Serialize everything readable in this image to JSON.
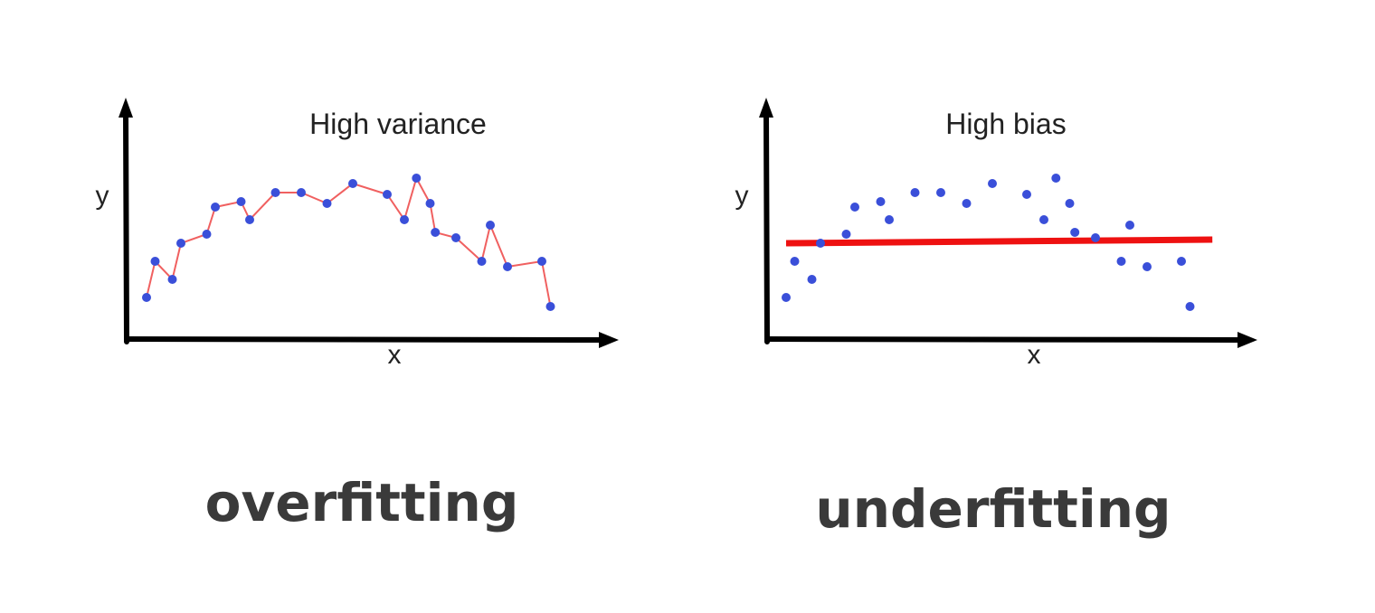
{
  "chart_data": [
    {
      "type": "line",
      "title": "High variance",
      "xlabel": "x",
      "ylabel": "y",
      "caption": "overfitting",
      "colors": {
        "line": "#f06060",
        "points": "#3a4fd9"
      },
      "points": [
        {
          "x": 1.0,
          "y": 2.3
        },
        {
          "x": 1.5,
          "y": 4.3
        },
        {
          "x": 2.5,
          "y": 3.3
        },
        {
          "x": 3.0,
          "y": 5.3
        },
        {
          "x": 4.5,
          "y": 5.8
        },
        {
          "x": 5.0,
          "y": 7.3
        },
        {
          "x": 6.5,
          "y": 7.6
        },
        {
          "x": 7.0,
          "y": 6.6
        },
        {
          "x": 8.5,
          "y": 8.1
        },
        {
          "x": 10.0,
          "y": 8.1
        },
        {
          "x": 11.5,
          "y": 7.5
        },
        {
          "x": 13.0,
          "y": 8.6
        },
        {
          "x": 15.0,
          "y": 8.0
        },
        {
          "x": 16.0,
          "y": 6.6
        },
        {
          "x": 16.7,
          "y": 8.9
        },
        {
          "x": 17.5,
          "y": 7.5
        },
        {
          "x": 17.8,
          "y": 5.9
        },
        {
          "x": 19.0,
          "y": 5.6
        },
        {
          "x": 20.5,
          "y": 4.3
        },
        {
          "x": 21.0,
          "y": 6.3
        },
        {
          "x": 22.0,
          "y": 4.0
        },
        {
          "x": 24.0,
          "y": 4.3
        },
        {
          "x": 24.5,
          "y": 1.8
        }
      ]
    },
    {
      "type": "scatter",
      "title": "High bias",
      "xlabel": "x",
      "ylabel": "y",
      "caption": "underfitting",
      "colors": {
        "line": "#ee1111",
        "points": "#3a4fd9"
      },
      "points": [
        {
          "x": 1.0,
          "y": 2.3
        },
        {
          "x": 1.5,
          "y": 4.3
        },
        {
          "x": 2.5,
          "y": 3.3
        },
        {
          "x": 3.0,
          "y": 5.3
        },
        {
          "x": 4.5,
          "y": 5.8
        },
        {
          "x": 5.0,
          "y": 7.3
        },
        {
          "x": 6.5,
          "y": 7.6
        },
        {
          "x": 7.0,
          "y": 6.6
        },
        {
          "x": 8.5,
          "y": 8.1
        },
        {
          "x": 10.0,
          "y": 8.1
        },
        {
          "x": 11.5,
          "y": 7.5
        },
        {
          "x": 13.0,
          "y": 8.6
        },
        {
          "x": 15.0,
          "y": 8.0
        },
        {
          "x": 16.0,
          "y": 6.6
        },
        {
          "x": 16.7,
          "y": 8.9
        },
        {
          "x": 17.5,
          "y": 7.5
        },
        {
          "x": 17.8,
          "y": 5.9
        },
        {
          "x": 19.0,
          "y": 5.6
        },
        {
          "x": 20.5,
          "y": 4.3
        },
        {
          "x": 21.0,
          "y": 6.3
        },
        {
          "x": 22.0,
          "y": 4.0
        },
        {
          "x": 24.0,
          "y": 4.3
        },
        {
          "x": 24.5,
          "y": 1.8
        }
      ],
      "fit_line": {
        "x": [
          1.0,
          25.8
        ],
        "y": [
          5.3,
          5.5
        ]
      }
    }
  ]
}
